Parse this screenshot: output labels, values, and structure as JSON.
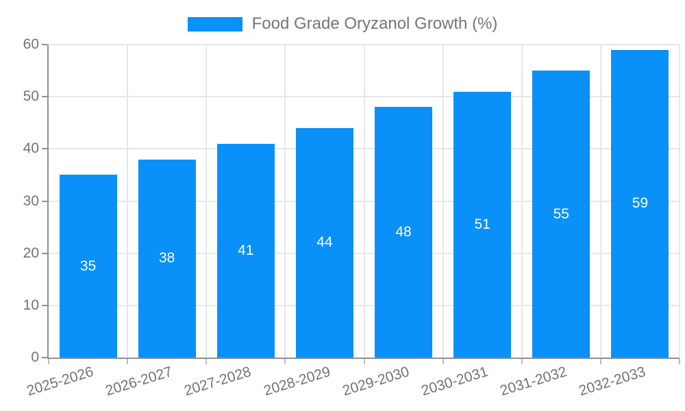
{
  "legend": {
    "label": "Food Grade Oryzanol Growth (%)"
  },
  "chart_data": {
    "type": "bar",
    "title": "Food Grade Oryzanol Growth (%)",
    "categories": [
      "2025-2026",
      "2026-2027",
      "2027-2028",
      "2028-2029",
      "2029-2030",
      "2030-2031",
      "2031-2032",
      "2032-2033"
    ],
    "values": [
      35,
      38,
      41,
      44,
      48,
      51,
      55,
      59
    ],
    "xlabel": "",
    "ylabel": "",
    "ylim": [
      0,
      60
    ],
    "yticks": [
      0,
      10,
      20,
      30,
      40,
      50,
      60
    ],
    "grid": true,
    "legend_position": "top",
    "colors": {
      "bar": "#0990f9",
      "gridline": "#e6e7e9",
      "axis_line": "#8f8f8f",
      "tick_label": "#737373",
      "legend_text": "#757575",
      "value_label": "#ffffff"
    }
  }
}
